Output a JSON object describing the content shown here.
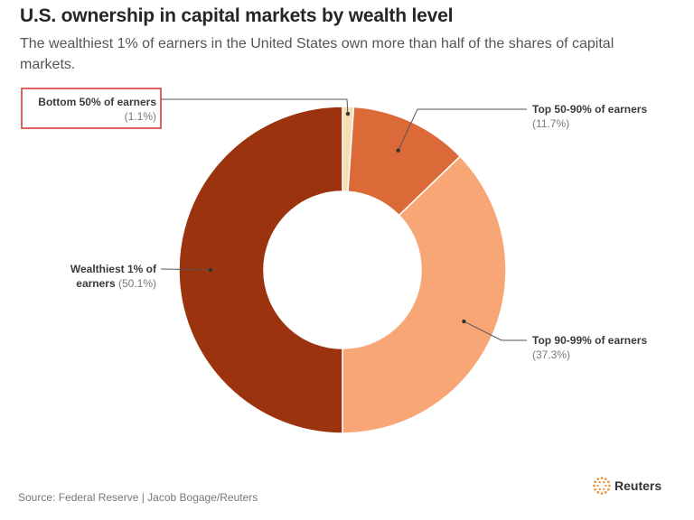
{
  "header": {
    "title": "U.S. ownership in capital markets by wealth level",
    "subtitle": "The wealthiest 1% of earners in the United States own more than half of the shares of capital markets."
  },
  "chart_data": {
    "type": "pie",
    "variant": "donut",
    "slices": [
      {
        "name": "Bottom 50% of earners",
        "label_line1": "Bottom 50% of earners",
        "label_line2": "",
        "value_text": "(1.1%)",
        "value": 1.1,
        "color": "#F6DDB4",
        "highlighted": true
      },
      {
        "name": "Top 50-90% of earners",
        "label_line1": "Top 50-90% of earners",
        "label_line2": "",
        "value_text": "(11.7%)",
        "value": 11.7,
        "color": "#DB6A38"
      },
      {
        "name": "Top 90-99% of earners",
        "label_line1": "Top 90-99% of earners",
        "label_line2": "",
        "value_text": "(37.3%)",
        "value": 37.3,
        "color": "#F9A677"
      },
      {
        "name": "Wealthiest 1% of earners",
        "label_line1": "Wealthiest 1% of",
        "label_line2": "earners",
        "value_text": "(50.1%)",
        "value": 50.1,
        "color": "#9B330F"
      }
    ],
    "highlight_color": "#D32F2F"
  },
  "footer": {
    "source": "Source: Federal Reserve | Jacob Bogage/Reuters",
    "brand": "Reuters",
    "brand_color": "#F08A24"
  }
}
